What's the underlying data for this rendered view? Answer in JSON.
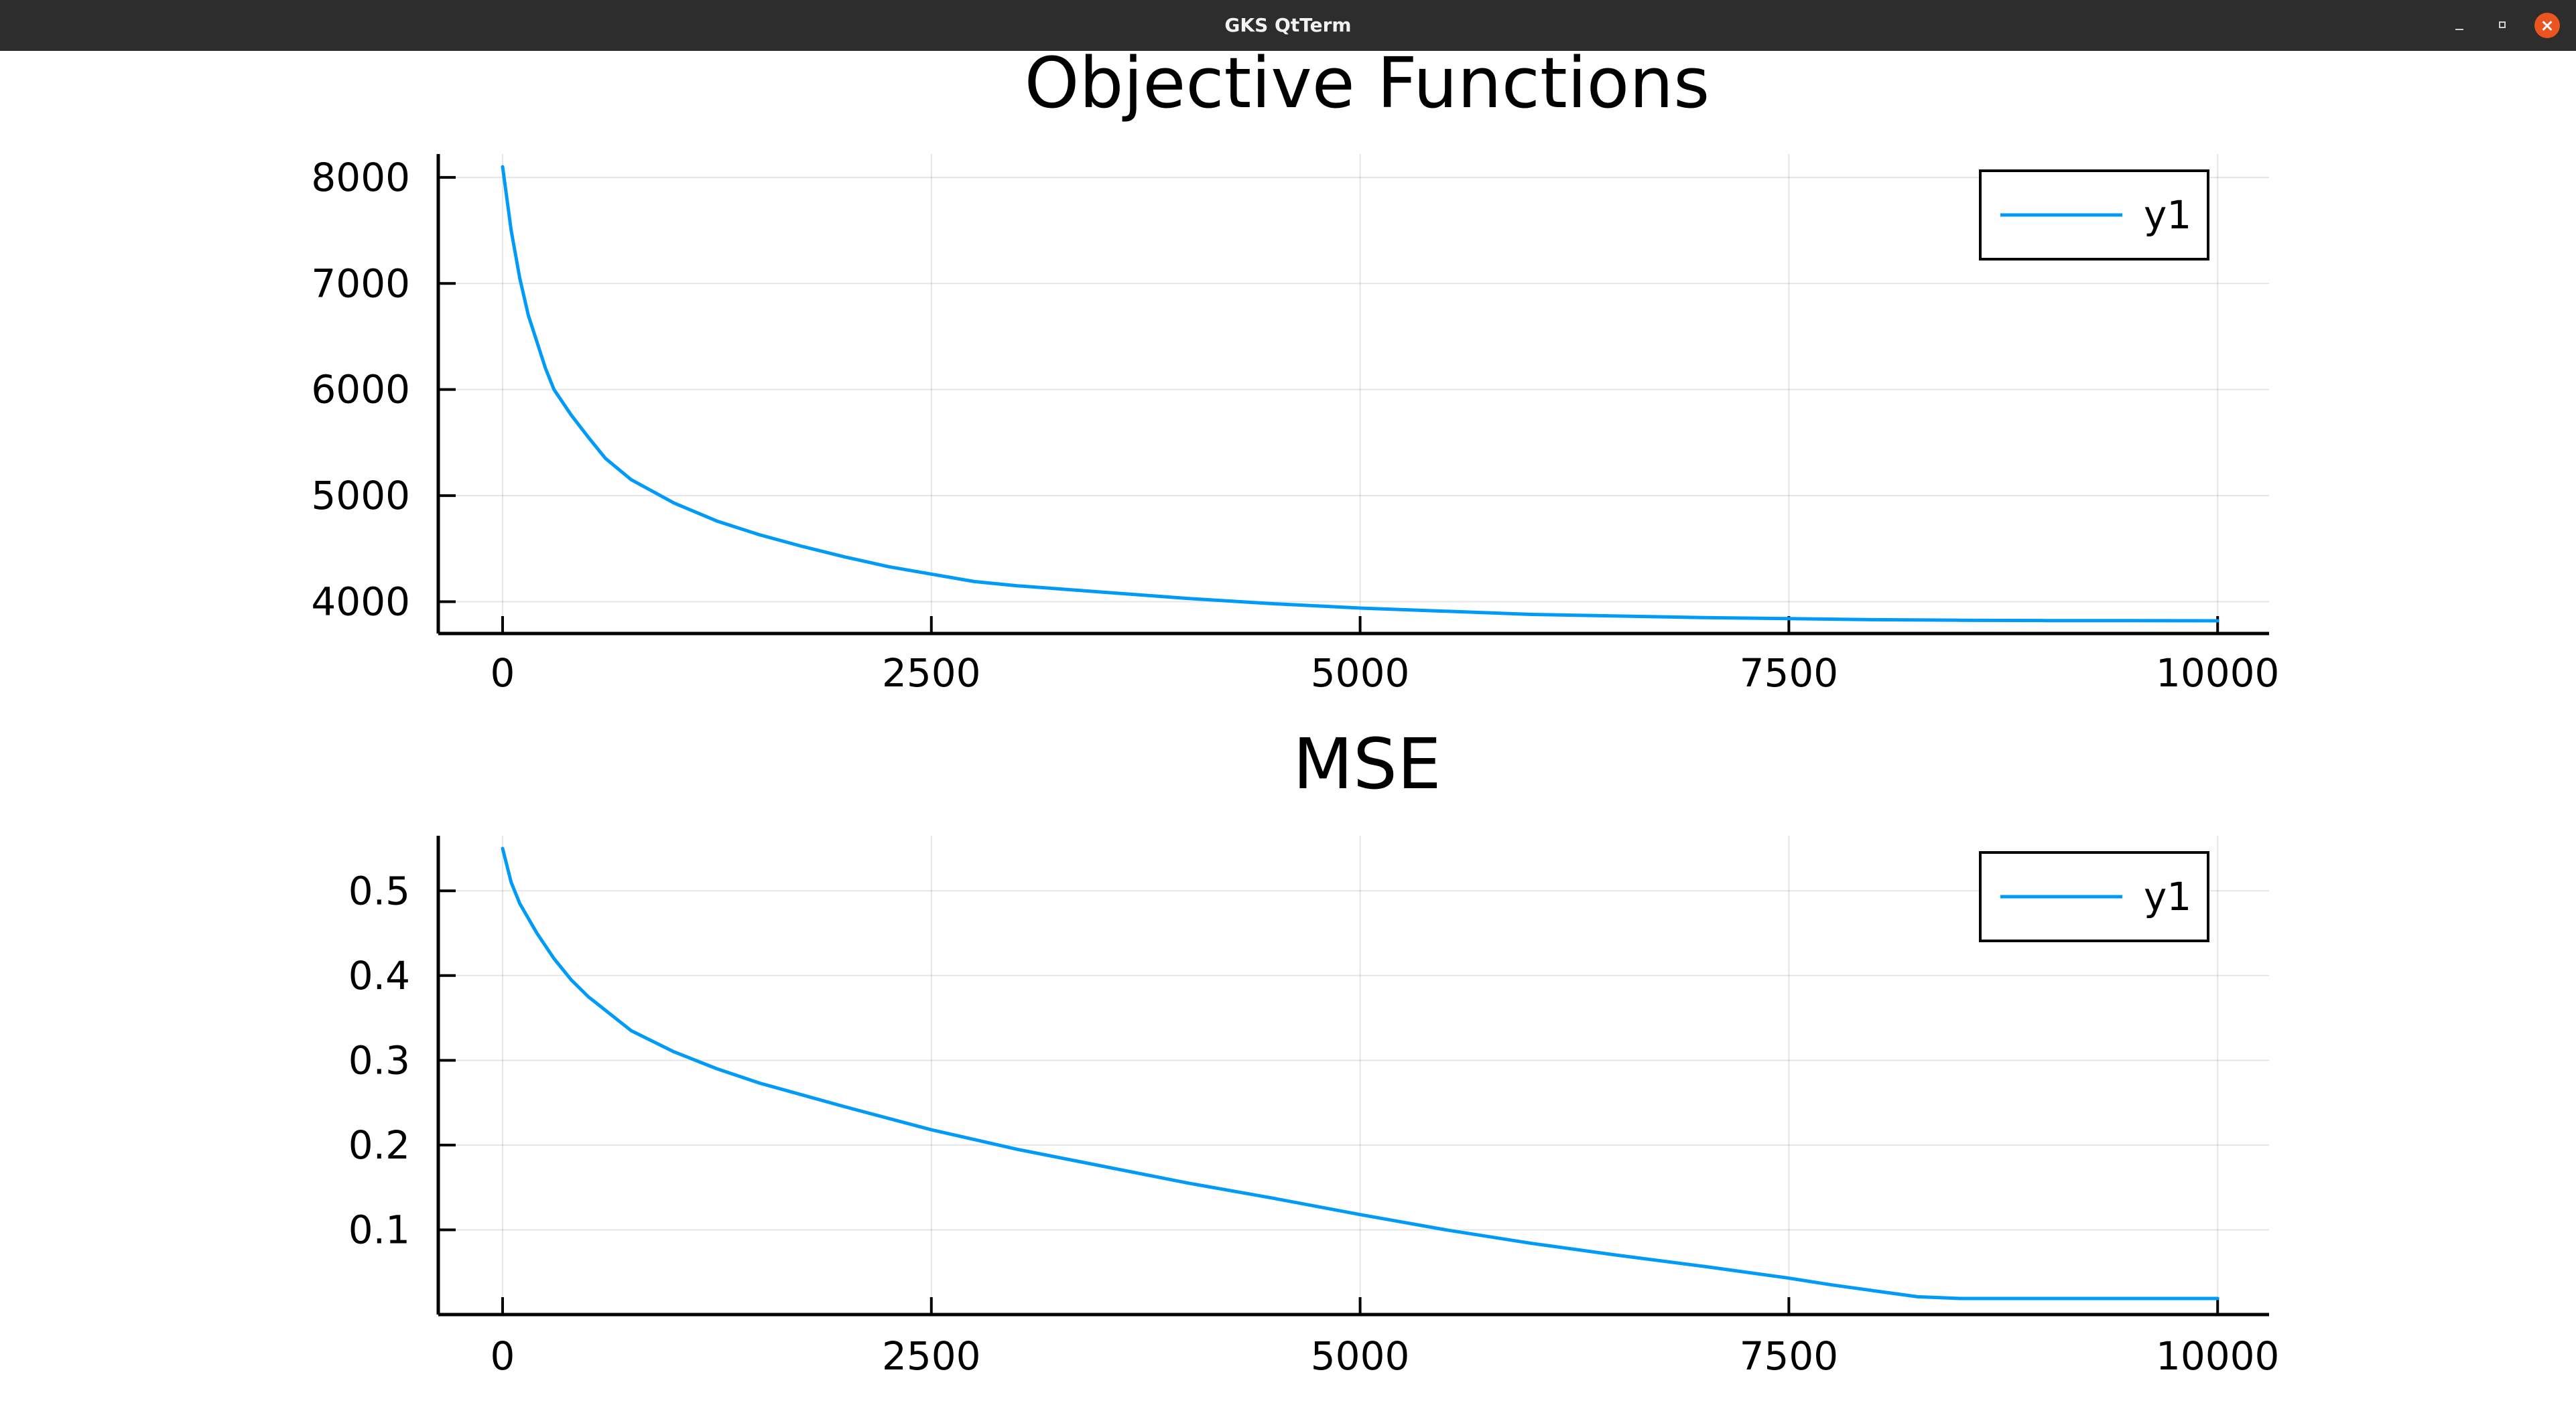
{
  "window": {
    "title": "GKS QtTerm",
    "buttons": {
      "minimize_icon": "minimize-icon",
      "maximize_icon": "restore-icon",
      "close_icon": "close-icon"
    },
    "close_color": "#e95420"
  },
  "chart_data": [
    {
      "type": "line",
      "title": "Objective Functions",
      "xlabel": "",
      "ylabel": "",
      "xlim": [
        -375,
        10300
      ],
      "ylim": [
        3700,
        8220
      ],
      "xticks": [
        0,
        2500,
        5000,
        7500,
        10000
      ],
      "yticks": [
        4000,
        5000,
        6000,
        7000,
        8000
      ],
      "grid": true,
      "legend": "top-right",
      "series": [
        {
          "name": "y1",
          "color": "#009af9",
          "x": [
            0,
            50,
            100,
            150,
            200,
            250,
            300,
            400,
            500,
            600,
            750,
            1000,
            1250,
            1500,
            1750,
            2000,
            2250,
            2500,
            2750,
            3000,
            3500,
            4000,
            4500,
            5000,
            5500,
            6000,
            6500,
            7000,
            7500,
            8000,
            8500,
            9000,
            9500,
            10000
          ],
          "y": [
            8100,
            7500,
            7050,
            6700,
            6450,
            6200,
            6000,
            5760,
            5550,
            5350,
            5150,
            4930,
            4760,
            4630,
            4520,
            4420,
            4330,
            4260,
            4190,
            4150,
            4090,
            4030,
            3980,
            3940,
            3910,
            3880,
            3865,
            3850,
            3840,
            3830,
            3825,
            3822,
            3821,
            3820
          ]
        }
      ]
    },
    {
      "type": "line",
      "title": "MSE",
      "xlabel": "",
      "ylabel": "",
      "xlim": [
        -375,
        10300
      ],
      "ylim": [
        0.0,
        0.565
      ],
      "xticks": [
        0,
        2500,
        5000,
        7500,
        10000
      ],
      "yticks": [
        0.1,
        0.2,
        0.3,
        0.4,
        0.5
      ],
      "grid": true,
      "legend": "top-right",
      "series": [
        {
          "name": "y1",
          "color": "#009af9",
          "x": [
            0,
            50,
            100,
            200,
            300,
            400,
            500,
            750,
            1000,
            1250,
            1500,
            2000,
            2500,
            3000,
            3500,
            4000,
            4500,
            5000,
            5500,
            6000,
            6500,
            7000,
            7500,
            7750,
            8000,
            8250,
            8500,
            9000,
            9500,
            10000
          ],
          "y": [
            0.55,
            0.51,
            0.485,
            0.45,
            0.42,
            0.395,
            0.375,
            0.335,
            0.31,
            0.29,
            0.273,
            0.245,
            0.218,
            0.195,
            0.175,
            0.155,
            0.137,
            0.118,
            0.1,
            0.084,
            0.07,
            0.057,
            0.043,
            0.035,
            0.028,
            0.021,
            0.019,
            0.019,
            0.019,
            0.019
          ]
        }
      ]
    }
  ]
}
